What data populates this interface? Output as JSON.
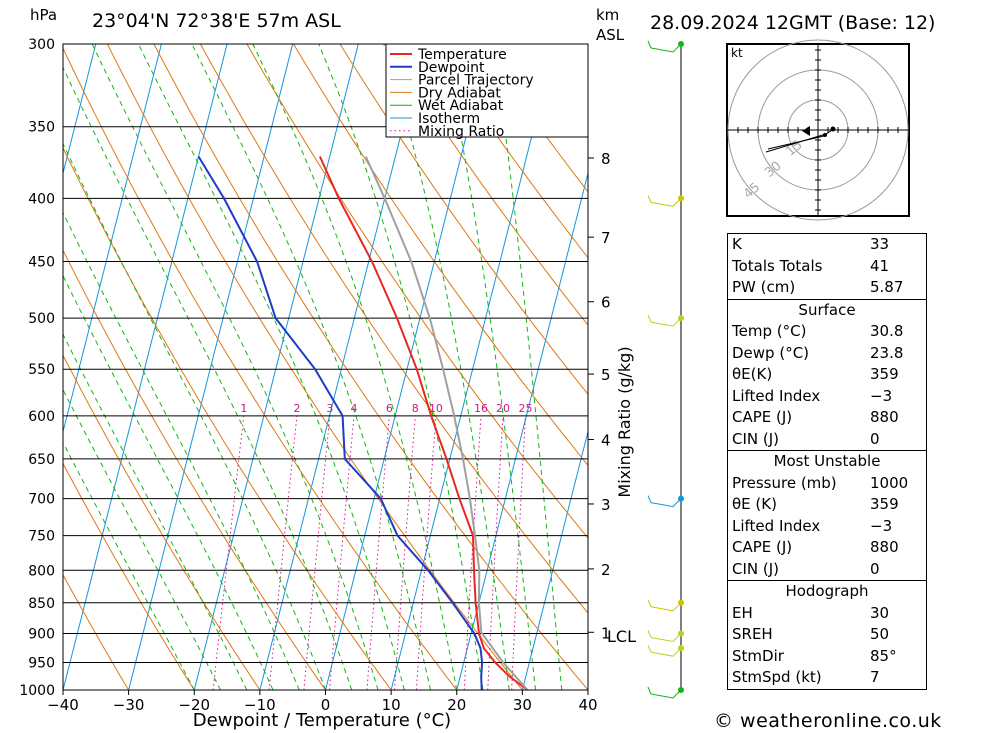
{
  "header": {
    "unit_pressure": "hPa",
    "location": "23°04'N 72°38'E 57m ASL",
    "unit_height_top": "km",
    "unit_height_bottom": "ASL",
    "datetime": "28.09.2024 12GMT (Base: 12)"
  },
  "chart_data": {
    "type": "line",
    "title": "23°04'N 72°38'E 57m ASL",
    "xlabel": "Dewpoint / Temperature (°C)",
    "ylabel": "hPa",
    "secondary_ylabel": "Mixing Ratio (g/kg)",
    "xlim": [
      -40,
      40
    ],
    "ylim": [
      1000,
      300
    ],
    "x_ticks": [
      "−40",
      "−30",
      "−20",
      "−10",
      "0",
      "10",
      "20",
      "30",
      "40"
    ],
    "pressure_ticks": [
      300,
      350,
      400,
      450,
      500,
      550,
      600,
      650,
      700,
      750,
      800,
      850,
      900,
      950,
      1000
    ],
    "km_ticks": [
      {
        "label": "8",
        "p": 371
      },
      {
        "label": "7",
        "p": 430
      },
      {
        "label": "6",
        "p": 485
      },
      {
        "label": "5",
        "p": 555
      },
      {
        "label": "4",
        "p": 627
      },
      {
        "label": "3",
        "p": 707
      },
      {
        "label": "2",
        "p": 798
      },
      {
        "label": "1",
        "p": 898
      }
    ],
    "lcl_label": "LCL",
    "lcl_pressure": 898,
    "mixing_ratio_labels": [
      "1",
      "2",
      "3",
      "4",
      "6",
      "8",
      "10",
      "16",
      "20",
      "25"
    ],
    "mixing_ratio_values": [
      1,
      2,
      3,
      4,
      6,
      8,
      10,
      16,
      20,
      25
    ],
    "legend": [
      {
        "name": "Temperature",
        "color": "#e8281e"
      },
      {
        "name": "Dewpoint",
        "color": "#1e3cc8"
      },
      {
        "name": "Parcel Trajectory",
        "color": "#a0a0a0"
      },
      {
        "name": "Dry Adiabat",
        "color": "#e07814"
      },
      {
        "name": "Wet Adiabat",
        "color": "#14b414"
      },
      {
        "name": "Isotherm",
        "color": "#1496dc"
      },
      {
        "name": "Mixing Ratio",
        "color": "#d2148c"
      }
    ],
    "series": [
      {
        "name": "Temperature",
        "color": "#e8281e",
        "points": [
          [
            1000,
            30.8
          ],
          [
            975,
            27.5
          ],
          [
            950,
            24.8
          ],
          [
            925,
            22.5
          ],
          [
            900,
            21.2
          ],
          [
            850,
            19.5
          ],
          [
            800,
            18.0
          ],
          [
            750,
            16.5
          ],
          [
            700,
            13.0
          ],
          [
            650,
            9.5
          ],
          [
            600,
            5.5
          ],
          [
            550,
            1.5
          ],
          [
            500,
            -3.5
          ],
          [
            450,
            -9.5
          ],
          [
            400,
            -17.0
          ],
          [
            370,
            -21.5
          ]
        ]
      },
      {
        "name": "Dewpoint",
        "color": "#1e3cc8",
        "points": [
          [
            1000,
            23.8
          ],
          [
            975,
            23.2
          ],
          [
            950,
            22.8
          ],
          [
            925,
            22.0
          ],
          [
            900,
            20.5
          ],
          [
            850,
            16.0
          ],
          [
            800,
            11.0
          ],
          [
            750,
            5.0
          ],
          [
            700,
            1.0
          ],
          [
            650,
            -6.0
          ],
          [
            600,
            -8.0
          ],
          [
            550,
            -14.0
          ],
          [
            500,
            -22.0
          ],
          [
            450,
            -27.0
          ],
          [
            400,
            -34.5
          ],
          [
            370,
            -40.0
          ]
        ]
      },
      {
        "name": "Parcel Trajectory",
        "color": "#a0a0a0",
        "points": [
          [
            1000,
            30.8
          ],
          [
            950,
            26.0
          ],
          [
            898,
            21.5
          ],
          [
            850,
            20.0
          ],
          [
            800,
            18.8
          ],
          [
            750,
            16.8
          ],
          [
            700,
            14.6
          ],
          [
            650,
            12.0
          ],
          [
            600,
            9.0
          ],
          [
            550,
            5.5
          ],
          [
            500,
            1.5
          ],
          [
            450,
            -3.5
          ],
          [
            400,
            -10.0
          ],
          [
            370,
            -14.5
          ]
        ]
      }
    ],
    "wind_barbs": [
      {
        "p": 300,
        "color": "#14b414"
      },
      {
        "p": 400,
        "color": "#c8c800"
      },
      {
        "p": 500,
        "color": "#b4d228"
      },
      {
        "p": 700,
        "color": "#1496dc"
      },
      {
        "p": 850,
        "color": "#c8c800"
      },
      {
        "p": 900,
        "color": "#b4d228"
      },
      {
        "p": 925,
        "color": "#b4d228"
      },
      {
        "p": 1000,
        "color": "#14b414"
      }
    ],
    "hodograph": {
      "unit": "kt",
      "ring_labels": [
        "15",
        "30",
        "45"
      ],
      "ring_values": [
        15,
        30,
        45
      ]
    }
  },
  "stats": {
    "indices": [
      {
        "label": "K",
        "value": "33"
      },
      {
        "label": "Totals Totals",
        "value": "41"
      },
      {
        "label": "PW (cm)",
        "value": "5.87"
      }
    ],
    "surface": {
      "title": "Surface",
      "rows": [
        {
          "label": "Temp (°C)",
          "value": "30.8"
        },
        {
          "label": "Dewp (°C)",
          "value": "23.8"
        },
        {
          "label": "θE(K)",
          "value": "359"
        },
        {
          "label": "Lifted Index",
          "value": "−3"
        },
        {
          "label": "CAPE (J)",
          "value": "880"
        },
        {
          "label": "CIN (J)",
          "value": "0"
        }
      ]
    },
    "most_unstable": {
      "title": "Most Unstable",
      "rows": [
        {
          "label": "Pressure (mb)",
          "value": "1000"
        },
        {
          "label": "θE (K)",
          "value": "359"
        },
        {
          "label": "Lifted Index",
          "value": "−3"
        },
        {
          "label": "CAPE (J)",
          "value": "880"
        },
        {
          "label": "CIN (J)",
          "value": "0"
        }
      ]
    },
    "hodograph": {
      "title": "Hodograph",
      "rows": [
        {
          "label": "EH",
          "value": "30"
        },
        {
          "label": "SREH",
          "value": "50"
        },
        {
          "label": "StmDir",
          "value": "85°"
        },
        {
          "label": "StmSpd (kt)",
          "value": "7"
        }
      ]
    }
  },
  "footer": {
    "credit": "© weatheronline.co.uk"
  }
}
